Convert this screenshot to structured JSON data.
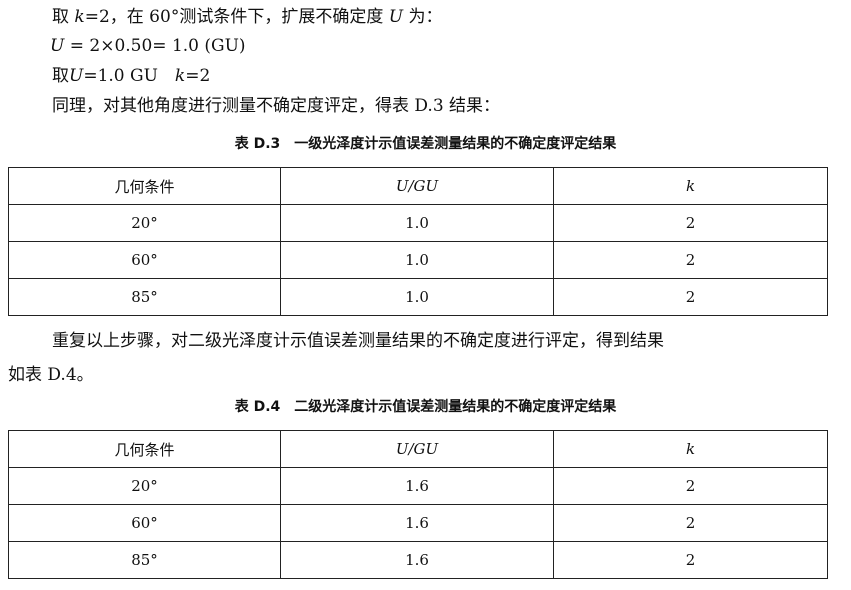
{
  "paragraphs": {
    "p1_a": "取 ",
    "p1_k": "k",
    "p1_b": "=2，在 60°测试条件下，扩展不确定度 ",
    "p1_U": "U",
    "p1_c": " 为：",
    "p2_U": "U",
    "p2_b": " = 2×0.50= 1.0 (GU)",
    "p3_a": "取",
    "p3_U": "U",
    "p3_b": "=1.0 GU　",
    "p3_k": "k",
    "p3_c": "=2",
    "p4": "同理，对其他角度进行测量不确定度评定，得表 D.3 结果：",
    "p5_a": "重复以上步骤，对二级光泽度计示值误差测量结果的不确定度进行评定，得到结果",
    "p5_b": "如表 D.4。"
  },
  "tables": [
    {
      "caption": "表 D.3　一级光泽度计示值误差测量结果的不确定度评定结果",
      "headers": [
        "几何条件",
        "U/GU",
        "k"
      ],
      "rows": [
        [
          "20°",
          "1.0",
          "2"
        ],
        [
          "60°",
          "1.0",
          "2"
        ],
        [
          "85°",
          "1.0",
          "2"
        ]
      ]
    },
    {
      "caption": "表 D.4　二级光泽度计示值误差测量结果的不确定度评定结果",
      "headers": [
        "几何条件",
        "U/GU",
        "k"
      ],
      "rows": [
        [
          "20°",
          "1.6",
          "2"
        ],
        [
          "60°",
          "1.6",
          "2"
        ],
        [
          "85°",
          "1.6",
          "2"
        ]
      ]
    }
  ]
}
